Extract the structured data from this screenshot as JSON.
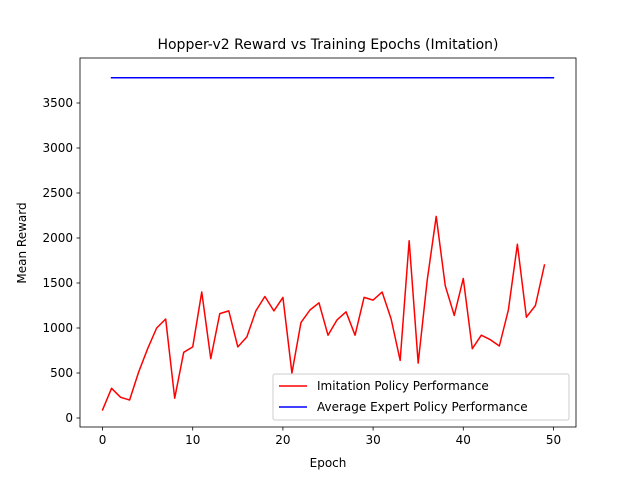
{
  "chart_data": {
    "type": "line",
    "title": "Hopper-v2 Reward vs Training Epochs (Imitation)",
    "xlabel": "Epoch",
    "ylabel": "Mean Reward",
    "xlim": [
      -2.5,
      52.5
    ],
    "ylim": [
      -100,
      4000
    ],
    "xticks": [
      0,
      10,
      20,
      30,
      40,
      50
    ],
    "yticks": [
      0,
      500,
      1000,
      1500,
      2000,
      2500,
      3000,
      3500
    ],
    "grid": false,
    "legend_position": "lower-right",
    "series": [
      {
        "name": "Imitation Policy Performance",
        "color": "#ff0000",
        "x": [
          0,
          1,
          2,
          3,
          4,
          5,
          6,
          7,
          8,
          9,
          10,
          11,
          12,
          13,
          14,
          15,
          16,
          17,
          18,
          19,
          20,
          21,
          22,
          23,
          24,
          25,
          26,
          27,
          28,
          29,
          30,
          31,
          32,
          33,
          34,
          35,
          36,
          37,
          38,
          39,
          40,
          41,
          42,
          43,
          44,
          45,
          46,
          47,
          48,
          49
        ],
        "values": [
          90,
          330,
          230,
          200,
          510,
          770,
          1000,
          1100,
          220,
          730,
          790,
          1400,
          660,
          1160,
          1190,
          790,
          900,
          1190,
          1350,
          1190,
          1340,
          500,
          1060,
          1200,
          1280,
          920,
          1090,
          1180,
          920,
          1340,
          1310,
          1400,
          1100,
          640,
          1970,
          610,
          1530,
          2240,
          1470,
          1140,
          1550,
          770,
          920,
          870,
          800,
          1200,
          1930,
          1120,
          1250,
          1700
        ]
      },
      {
        "name": "Average Expert Policy Performance",
        "color": "#0000ff",
        "x": [
          1,
          50
        ],
        "values": [
          3780,
          3780
        ]
      }
    ]
  }
}
